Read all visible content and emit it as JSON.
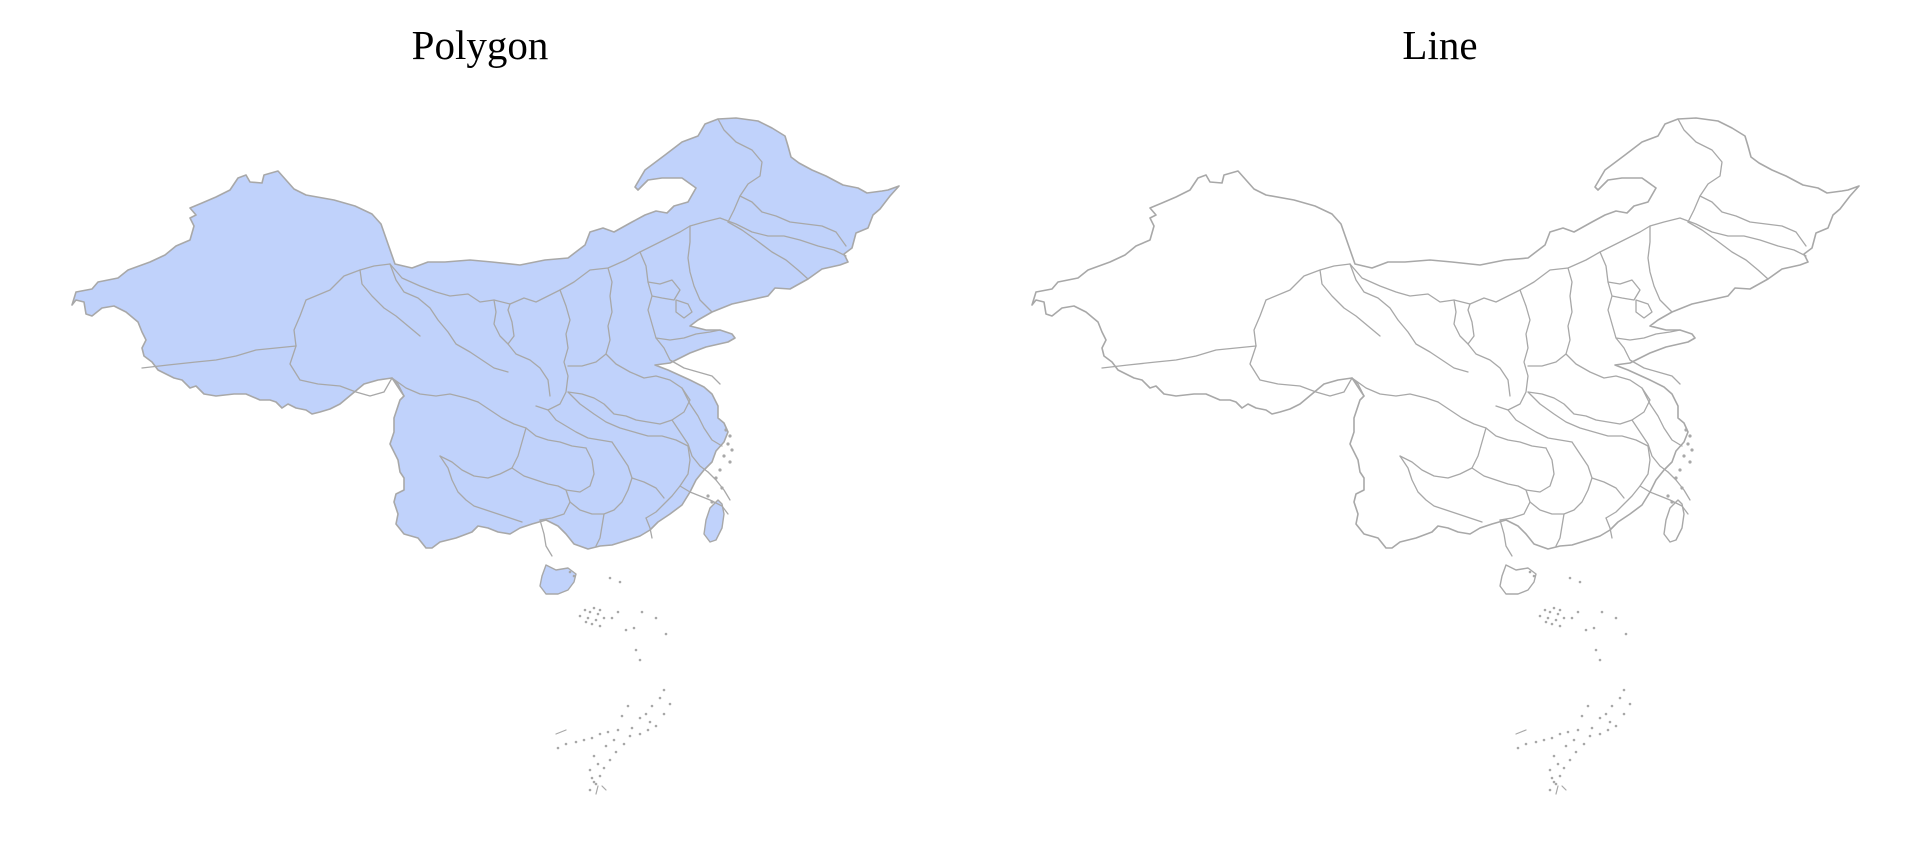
{
  "figure": {
    "panels": [
      {
        "id": "polygon",
        "title": "Polygon",
        "fill_color": "#c0d2fb",
        "stroke_color": "#a8a8a8",
        "filled": true
      },
      {
        "id": "line",
        "title": "Line",
        "fill_color": "none",
        "stroke_color": "#a8a8a8",
        "filled": false
      }
    ]
  }
}
